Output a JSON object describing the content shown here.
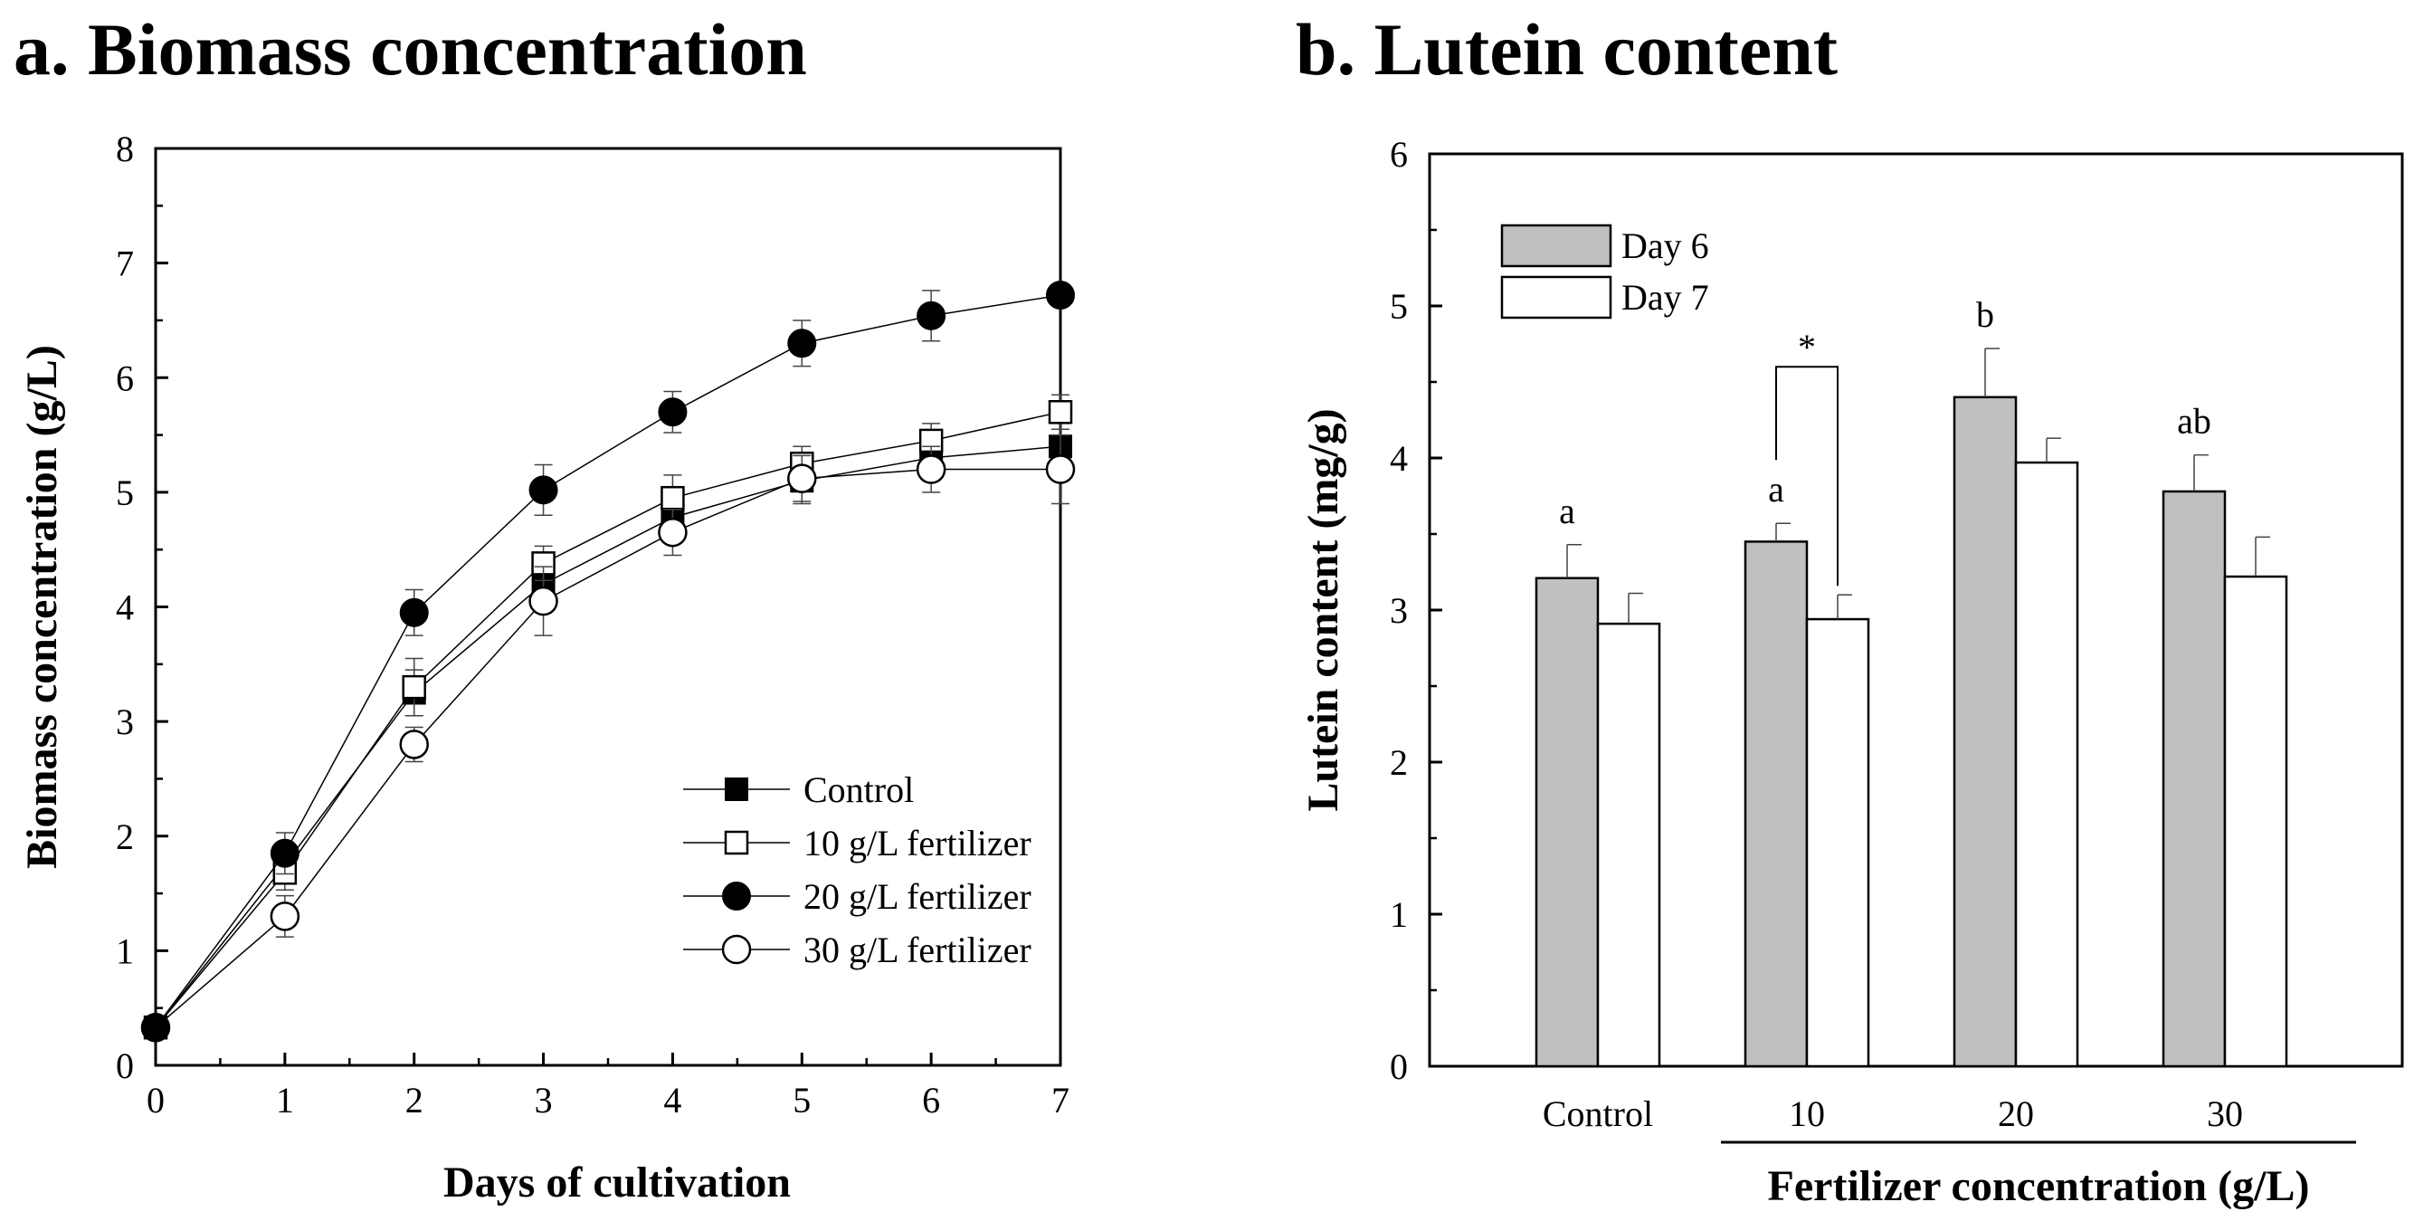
{
  "panel_titles": {
    "a": "a. Biomass concentration",
    "b": "b. Lutein content"
  },
  "chart_data": [
    {
      "type": "line",
      "title": "a. Biomass concentration",
      "xlabel": "Days of cultivation",
      "ylabel": "Biomass concentration (g/L)",
      "xlim": [
        0,
        7
      ],
      "ylim": [
        0,
        8
      ],
      "xticks": [
        "0",
        "1",
        "2",
        "3",
        "4",
        "5",
        "6",
        "7"
      ],
      "yticks": [
        "0",
        "1",
        "2",
        "3",
        "4",
        "5",
        "6",
        "7",
        "8"
      ],
      "grid": false,
      "legend_position": "bottom-right",
      "x": [
        0,
        1,
        2,
        3,
        4,
        5,
        6,
        7
      ],
      "series": [
        {
          "name": "Control",
          "marker": "filled-square",
          "values": [
            0.33,
            1.75,
            3.25,
            4.2,
            4.78,
            5.1,
            5.3,
            5.4
          ],
          "errors": [
            0.05,
            0.15,
            0.2,
            0.2,
            0.2,
            0.2,
            0.2,
            0.2
          ]
        },
        {
          "name": "10 g/L fertilizer",
          "marker": "open-square",
          "values": [
            0.33,
            1.68,
            3.3,
            4.38,
            4.95,
            5.25,
            5.45,
            5.7
          ],
          "errors": [
            0.05,
            0.15,
            0.25,
            0.15,
            0.2,
            0.15,
            0.15,
            0.15
          ]
        },
        {
          "name": "20 g/L fertilizer",
          "marker": "filled-circle",
          "values": [
            0.33,
            1.85,
            3.95,
            5.02,
            5.7,
            6.3,
            6.54,
            6.72
          ],
          "errors": [
            0.05,
            0.18,
            0.2,
            0.22,
            0.18,
            0.2,
            0.22,
            0.05
          ]
        },
        {
          "name": "30 g/L fertilizer",
          "marker": "open-circle",
          "values": [
            0.33,
            1.3,
            2.8,
            4.05,
            4.65,
            5.12,
            5.2,
            5.2
          ],
          "errors": [
            0.05,
            0.18,
            0.15,
            0.3,
            0.2,
            0.2,
            0.2,
            0.3
          ]
        }
      ]
    },
    {
      "type": "bar",
      "title": "b. Lutein content",
      "xlabel": "Fertilizer concentration (g/L)",
      "ylabel": "Lutein content (mg/g)",
      "ylim": [
        0,
        6
      ],
      "yticks": [
        "0",
        "1",
        "2",
        "3",
        "4",
        "5",
        "6"
      ],
      "grid": false,
      "legend_position": "top-left",
      "categories": [
        "Control",
        "10",
        "20",
        "30"
      ],
      "series": [
        {
          "name": "Day 6",
          "color": "#c0c0c0",
          "values": [
            3.21,
            3.45,
            4.4,
            3.78
          ],
          "errors": [
            0.22,
            0.12,
            0.32,
            0.24
          ]
        },
        {
          "name": "Day 7",
          "color": "#ffffff",
          "values": [
            2.91,
            2.94,
            3.97,
            3.22
          ],
          "errors": [
            0.2,
            0.16,
            0.16,
            0.26
          ]
        }
      ],
      "annotations": {
        "letters": [
          "a",
          "a",
          "b",
          "ab"
        ],
        "significance": "*"
      }
    }
  ]
}
